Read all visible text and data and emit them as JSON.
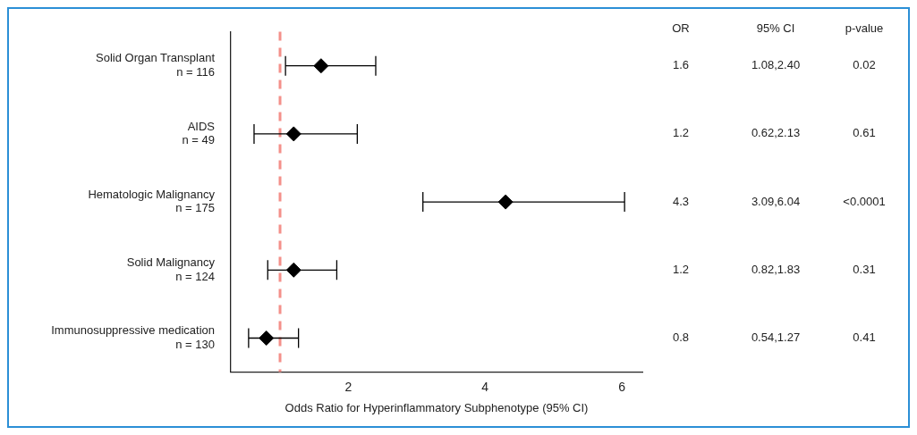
{
  "chart_data": {
    "type": "scatter",
    "orientation": "horizontal",
    "xlabel": "Odds Ratio for Hyperinflammatory Subphenotype (95% CI)",
    "categories": [
      "Solid Organ Transplant\nn = 116",
      "AIDS\nn = 49",
      "Hematologic Malignancy\nn = 175",
      "Solid Malignancy\nn = 124",
      "Immunosuppressive medication\nn = 130"
    ],
    "values": [
      1.6,
      1.2,
      4.3,
      1.2,
      0.8
    ],
    "errors": [
      [
        1.08,
        2.4
      ],
      [
        0.62,
        2.13
      ],
      [
        3.09,
        6.04
      ],
      [
        0.82,
        1.83
      ],
      [
        0.54,
        1.27
      ]
    ],
    "color": "#000000",
    "marker": "diamond",
    "data_labels": true,
    "xlim": [
      0.28,
      6.3
    ],
    "xticks": [
      2,
      4,
      6
    ],
    "ref_lines": [
      {
        "axis": "x",
        "value": 1,
        "color": "#f4908a",
        "line_style": "dashed"
      }
    ],
    "annotations": [
      "OR",
      "95% CI",
      "p-value",
      "1.08,2.40",
      "0.02",
      "0.62,2.13",
      "0.61",
      "3.09,6.04",
      "<0.0001",
      "0.82,1.83",
      "0.31",
      "0.54,1.27",
      "0.41"
    ],
    "legend": false
  }
}
